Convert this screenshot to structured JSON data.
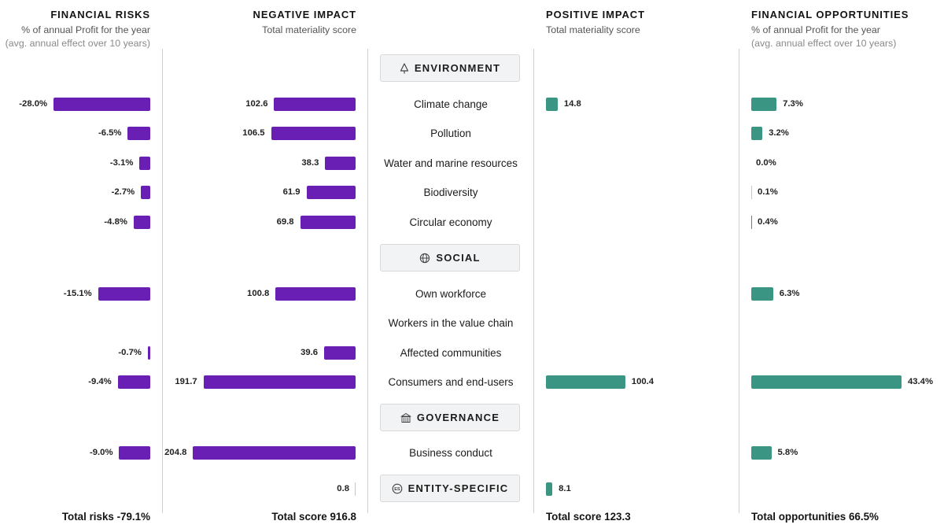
{
  "headers": {
    "financial_risks": {
      "title": "FINANCIAL RISKS",
      "subtitle": "% of annual Profit for the year",
      "note": "(avg. annual effect over 10 years)"
    },
    "negative_impact": {
      "title": "NEGATIVE IMPACT",
      "subtitle": "Total materiality score"
    },
    "positive_impact": {
      "title": "POSITIVE IMPACT",
      "subtitle": "Total materiality score"
    },
    "financial_opportunities": {
      "title": "FINANCIAL OPPORTUNITIES",
      "subtitle": "% of annual Profit for the year",
      "note": "(avg. annual effect over 10 years)"
    }
  },
  "categories": {
    "environment": {
      "label": "ENVIRONMENT",
      "icon": "tree-icon"
    },
    "social": {
      "label": "SOCIAL",
      "icon": "globe-icon"
    },
    "governance": {
      "label": "GOVERNANCE",
      "icon": "building-icon"
    },
    "entity_specific": {
      "label": "ENTITY-SPECIFIC",
      "icon": "es-badge-icon"
    }
  },
  "totals": {
    "risks": "Total risks -79.1%",
    "negative": "Total score 916.8",
    "positive": "Total score 123.3",
    "opportunities": "Total opportunities 66.5%"
  },
  "colors": {
    "negative": "#6a1fb4",
    "positive": "#3a9683",
    "thin_neutral": "#c6c6c6"
  },
  "chart_data": {
    "type": "bar",
    "layout": "diverging-table",
    "categories": [
      "Climate change",
      "Pollution",
      "Water and marine resources",
      "Biodiversity",
      "Circular economy",
      "Own workforce",
      "Workers in the value chain",
      "Affected communities",
      "Consumers and end-users",
      "Business conduct",
      ""
    ],
    "groups": [
      "ENVIRONMENT",
      "ENVIRONMENT",
      "ENVIRONMENT",
      "ENVIRONMENT",
      "ENVIRONMENT",
      "SOCIAL",
      "SOCIAL",
      "SOCIAL",
      "SOCIAL",
      "GOVERNANCE",
      "ENTITY-SPECIFIC"
    ],
    "series": [
      {
        "name": "FINANCIAL RISKS",
        "values": [
          -28.0,
          -6.5,
          -3.1,
          -2.7,
          -4.8,
          -15.1,
          null,
          -0.7,
          -9.4,
          -9.0,
          null
        ],
        "labels": [
          "-28.0%",
          "-6.5%",
          "-3.1%",
          "-2.7%",
          "-4.8%",
          "-15.1%",
          "",
          "-0.7%",
          "-9.4%",
          "-9.0%",
          ""
        ]
      },
      {
        "name": "NEGATIVE IMPACT",
        "values": [
          102.6,
          106.5,
          38.3,
          61.9,
          69.8,
          100.8,
          null,
          39.6,
          191.7,
          204.8,
          0.8
        ],
        "labels": [
          "102.6",
          "106.5",
          "38.3",
          "61.9",
          "69.8",
          "100.8",
          "",
          "39.6",
          "191.7",
          "204.8",
          "0.8"
        ]
      },
      {
        "name": "POSITIVE IMPACT",
        "values": [
          14.8,
          null,
          null,
          null,
          null,
          null,
          null,
          null,
          100.4,
          null,
          8.1
        ],
        "labels": [
          "14.8",
          "",
          "",
          "",
          "",
          "",
          "",
          "",
          "100.4",
          "",
          "8.1"
        ]
      },
      {
        "name": "FINANCIAL OPPORTUNITIES",
        "values": [
          7.3,
          3.2,
          0.0,
          0.1,
          0.4,
          6.3,
          null,
          null,
          43.4,
          5.8,
          null
        ],
        "labels": [
          "7.3%",
          "3.2%",
          "0.0%",
          "0.1%",
          "0.4%",
          "6.3%",
          "",
          "",
          "43.4%",
          "5.8%",
          ""
        ]
      }
    ]
  }
}
